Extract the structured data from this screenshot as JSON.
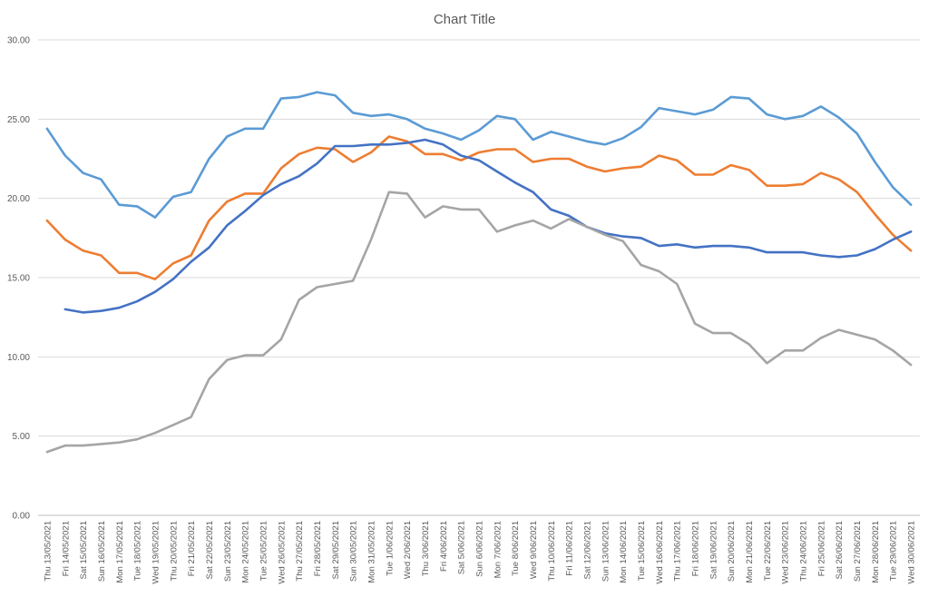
{
  "chart_data": {
    "type": "line",
    "title": "Chart Title",
    "xlabel": "",
    "ylabel": "",
    "ylim": [
      0,
      30
    ],
    "yticks": [
      "0.00",
      "5.00",
      "10.00",
      "15.00",
      "20.00",
      "25.00",
      "30.00"
    ],
    "ytick_values": [
      0,
      5,
      10,
      15,
      20,
      25,
      30
    ],
    "grid": true,
    "legend": "none",
    "categories": [
      "Thu 13/05/2021",
      "Fri 14/05/2021",
      "Sat 15/05/2021",
      "Sun 16/05/2021",
      "Mon 17/05/2021",
      "Tue 18/05/2021",
      "Wed 19/05/2021",
      "Thu 20/05/2021",
      "Fri 21/05/2021",
      "Sat 22/05/2021",
      "Sun 23/05/2021",
      "Mon 24/05/2021",
      "Tue 25/05/2021",
      "Wed 26/05/2021",
      "Thu 27/05/2021",
      "Fri 28/05/2021",
      "Sat 29/05/2021",
      "Sun 30/05/2021",
      "Mon 31/05/2021",
      "Tue 1/06/2021",
      "Wed 2/06/2021",
      "Thu 3/06/2021",
      "Fri 4/06/2021",
      "Sat 5/06/2021",
      "Sun 6/06/2021",
      "Mon 7/06/2021",
      "Tue 8/06/2021",
      "Wed 9/06/2021",
      "Thu 10/06/2021",
      "Fri 11/06/2021",
      "Sat 12/06/2021",
      "Sun 13/06/2021",
      "Mon 14/06/2021",
      "Tue 15/06/2021",
      "Wed 16/06/2021",
      "Thu 17/06/2021",
      "Fri 18/06/2021",
      "Sat 19/06/2021",
      "Sun 20/06/2021",
      "Mon 21/06/2021",
      "Tue 22/06/2021",
      "Wed 23/06/2021",
      "Thu 24/06/2021",
      "Fri 25/06/2021",
      "Sat 26/06/2021",
      "Sun 27/06/2021",
      "Mon 28/06/2021",
      "Tue 29/06/2021",
      "Wed 30/06/2021"
    ],
    "series": [
      {
        "color": "#5b9bd5",
        "values": [
          24.4,
          22.7,
          21.6,
          21.2,
          19.6,
          19.5,
          18.8,
          20.1,
          20.4,
          22.5,
          23.9,
          24.4,
          24.4,
          26.3,
          26.4,
          26.7,
          26.5,
          25.4,
          25.2,
          25.3,
          25.0,
          24.4,
          24.1,
          23.7,
          24.3,
          25.2,
          25.0,
          23.7,
          24.2,
          23.9,
          23.6,
          23.4,
          23.8,
          24.5,
          25.7,
          25.5,
          25.3,
          25.6,
          26.4,
          26.3,
          25.3,
          25.0,
          25.2,
          25.8,
          25.1,
          24.1,
          22.3,
          20.7,
          19.6
        ]
      },
      {
        "color": "#ed7d31",
        "values": [
          18.6,
          17.4,
          16.7,
          16.4,
          15.3,
          15.3,
          14.9,
          15.9,
          16.4,
          18.6,
          19.8,
          20.3,
          20.3,
          21.9,
          22.8,
          23.2,
          23.1,
          22.3,
          22.9,
          23.9,
          23.6,
          22.8,
          22.8,
          22.4,
          22.9,
          23.1,
          23.1,
          22.3,
          22.5,
          22.5,
          22.0,
          21.7,
          21.9,
          22.0,
          22.7,
          22.4,
          21.5,
          21.5,
          22.1,
          21.8,
          20.8,
          20.8,
          20.9,
          21.6,
          21.2,
          20.4,
          19.0,
          17.7,
          16.7
        ]
      },
      {
        "color": "#4472c4",
        "values": [
          null,
          13.0,
          12.8,
          12.9,
          13.1,
          13.5,
          14.1,
          14.9,
          16.0,
          16.9,
          18.3,
          19.2,
          20.2,
          20.9,
          21.4,
          22.2,
          23.3,
          23.3,
          23.4,
          23.4,
          23.5,
          23.7,
          23.4,
          22.7,
          22.4,
          21.7,
          21.0,
          20.4,
          19.3,
          18.9,
          18.2,
          17.8,
          17.6,
          17.5,
          17.0,
          17.1,
          16.9,
          17.0,
          17.0,
          16.9,
          16.6,
          16.6,
          16.6,
          16.4,
          16.3,
          16.4,
          16.8,
          17.4,
          17.9
        ]
      },
      {
        "color": "#a5a5a5",
        "values": [
          4.0,
          4.4,
          4.4,
          4.5,
          4.6,
          4.8,
          5.2,
          5.7,
          6.2,
          8.6,
          9.8,
          10.1,
          10.1,
          11.1,
          13.6,
          14.4,
          14.6,
          14.8,
          17.4,
          20.4,
          20.3,
          18.8,
          19.5,
          19.3,
          19.3,
          17.9,
          18.3,
          18.6,
          18.1,
          18.7,
          18.2,
          17.7,
          17.3,
          15.8,
          15.4,
          14.6,
          12.1,
          11.5,
          11.5,
          10.8,
          9.6,
          10.4,
          10.4,
          11.2,
          11.7,
          11.4,
          11.1,
          10.4,
          9.5
        ]
      }
    ]
  }
}
